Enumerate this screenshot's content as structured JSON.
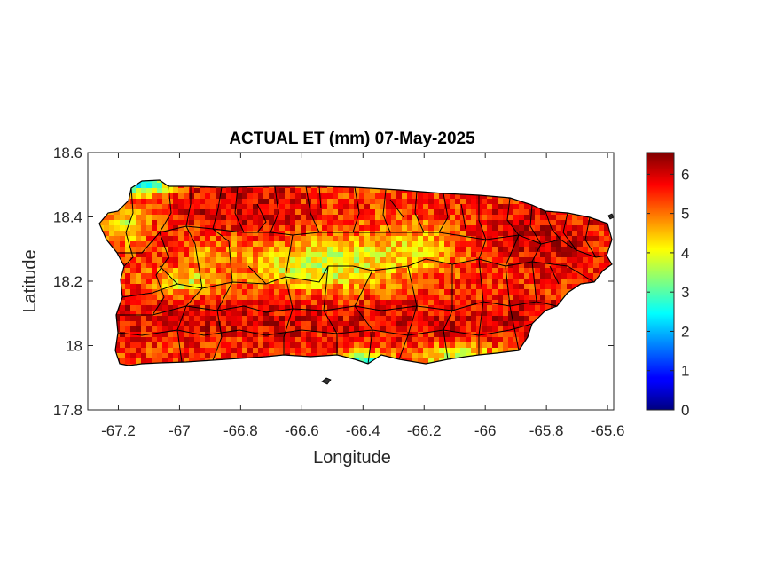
{
  "title": "ACTUAL ET (mm) 07-May-2025",
  "xlabel": "Longitude",
  "ylabel": "Latitude",
  "colormap": "jet",
  "chart_data": {
    "type": "heatmap",
    "title": "ACTUAL ET (mm) 07-May-2025",
    "xlabel": "Longitude",
    "ylabel": "Latitude",
    "xlim": [
      -67.3,
      -65.58
    ],
    "ylim": [
      17.8,
      18.6
    ],
    "xticks": [
      -67.2,
      -67,
      -66.8,
      -66.6,
      -66.4,
      -66.2,
      -66,
      -65.8,
      -65.6
    ],
    "xtick_labels": [
      "-67.2",
      "-67",
      "-66.8",
      "-66.6",
      "-66.4",
      "-66.2",
      "-66",
      "-65.8",
      "-65.6"
    ],
    "yticks": [
      17.8,
      18,
      18.2,
      18.4,
      18.6
    ],
    "ytick_labels": [
      "17.8",
      "18",
      "18.2",
      "18.4",
      "18.6"
    ],
    "colorbar": {
      "range": [
        0,
        6.55
      ],
      "ticks": [
        0,
        1,
        2,
        3,
        4,
        5,
        6
      ],
      "tick_labels": [
        "0",
        "1",
        "2",
        "3",
        "4",
        "5",
        "6"
      ]
    },
    "grid": false
  }
}
